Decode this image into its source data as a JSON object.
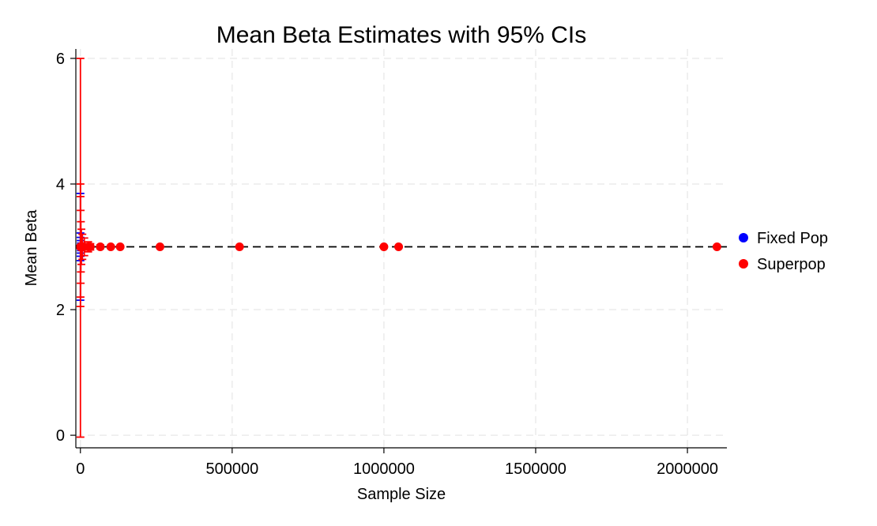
{
  "chart_data": {
    "type": "scatter",
    "title": "Mean Beta Estimates with 95% CIs",
    "xlabel": "Sample Size",
    "ylabel": "Mean Beta",
    "xlim": [
      -15000,
      2130000
    ],
    "ylim": [
      -0.2,
      6.15
    ],
    "xticks": [
      0,
      500000,
      1000000,
      1500000,
      2000000
    ],
    "xtick_labels": [
      "0",
      "500000",
      "1000000",
      "1500000",
      "2000000"
    ],
    "yticks": [
      0,
      2,
      4,
      6
    ],
    "ytick_labels": [
      "0",
      "2",
      "4",
      "6"
    ],
    "grid": true,
    "reference_line": {
      "y": 3,
      "style": "dashed",
      "color": "#000000"
    },
    "legend_position": "right",
    "series": [
      {
        "name": "Fixed Pop",
        "color": "#0000ff",
        "points": [
          {
            "x": 100,
            "y": 3.0,
            "lo": 2.15,
            "hi": 3.85
          },
          {
            "x": 200,
            "y": 3.0,
            "lo": 2.78,
            "hi": 3.22
          },
          {
            "x": 400,
            "y": 3.0,
            "lo": 2.85,
            "hi": 3.15
          },
          {
            "x": 800,
            "y": 3.0,
            "lo": 2.9,
            "hi": 3.1
          },
          {
            "x": 1600,
            "y": 3.0,
            "lo": 2.94,
            "hi": 3.06
          }
        ]
      },
      {
        "name": "Superpop",
        "color": "#ff0000",
        "points": [
          {
            "x": 100,
            "y": 3.0,
            "lo": -0.03,
            "hi": 6.0
          },
          {
            "x": 200,
            "y": 3.0,
            "lo": 2.05,
            "hi": 4.0
          },
          {
            "x": 400,
            "y": 3.0,
            "lo": 2.2,
            "hi": 3.8
          },
          {
            "x": 800,
            "y": 3.0,
            "lo": 2.42,
            "hi": 3.58
          },
          {
            "x": 1600,
            "y": 3.0,
            "lo": 2.6,
            "hi": 3.4
          },
          {
            "x": 3200,
            "y": 3.0,
            "lo": 2.72,
            "hi": 3.28
          },
          {
            "x": 6400,
            "y": 3.0,
            "lo": 2.8,
            "hi": 3.2
          },
          {
            "x": 12800,
            "y": 3.0,
            "lo": 2.86,
            "hi": 3.14
          },
          {
            "x": 25600,
            "y": 3.0,
            "lo": 2.92,
            "hi": 3.08
          },
          {
            "x": 32768,
            "y": 3.0,
            "lo": 2.95,
            "hi": 3.05
          },
          {
            "x": 65536,
            "y": 3.0,
            "lo": 2.97,
            "hi": 3.03
          },
          {
            "x": 100000,
            "y": 3.0,
            "lo": 2.98,
            "hi": 3.02
          },
          {
            "x": 131072,
            "y": 3.0,
            "lo": 2.985,
            "hi": 3.015
          },
          {
            "x": 262144,
            "y": 3.0,
            "lo": 2.99,
            "hi": 3.01
          },
          {
            "x": 524288,
            "y": 3.0,
            "lo": 2.995,
            "hi": 3.005
          },
          {
            "x": 1000000,
            "y": 3.0,
            "lo": 2.996,
            "hi": 3.004
          },
          {
            "x": 1048576,
            "y": 3.0,
            "lo": 2.997,
            "hi": 3.003
          },
          {
            "x": 2097152,
            "y": 3.0,
            "lo": 2.998,
            "hi": 3.002
          }
        ]
      }
    ]
  }
}
